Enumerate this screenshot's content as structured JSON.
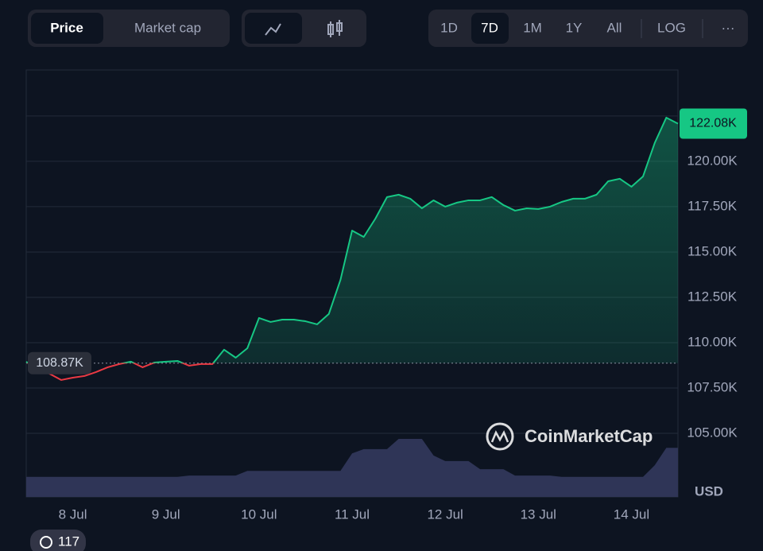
{
  "ui": {
    "tabs": [
      "Price",
      "Market cap"
    ],
    "ranges": [
      "1D",
      "7D",
      "1M",
      "1Y",
      "All"
    ],
    "log": "LOG",
    "more": "···",
    "currency": "USD",
    "watermark": "CoinMarketCap",
    "badge_count": 117
  },
  "chart_data": {
    "type": "line",
    "categories": [
      null,
      null,
      null,
      null,
      "8 Jul",
      null,
      null,
      null,
      null,
      null,
      null,
      null,
      "9 Jul",
      null,
      null,
      null,
      null,
      null,
      null,
      null,
      "10 Jul",
      null,
      null,
      null,
      null,
      null,
      null,
      null,
      "11 Jul",
      null,
      null,
      null,
      null,
      null,
      null,
      null,
      "12 Jul",
      null,
      null,
      null,
      null,
      null,
      null,
      null,
      "13 Jul",
      null,
      null,
      null,
      null,
      null,
      null,
      null,
      "14 Jul",
      null,
      null,
      null,
      null
    ],
    "values": [
      108950,
      108500,
      108290,
      107940,
      108070,
      108160,
      108380,
      108640,
      108820,
      108950,
      108640,
      108900,
      108950,
      108990,
      108730,
      108820,
      108820,
      109610,
      109170,
      109690,
      111360,
      111140,
      111270,
      111270,
      111180,
      111010,
      111580,
      113460,
      116180,
      115830,
      116840,
      118030,
      118160,
      117940,
      117410,
      117850,
      117500,
      117720,
      117850,
      117850,
      118030,
      117590,
      117280,
      117410,
      117370,
      117500,
      117760,
      117940,
      117940,
      118160,
      118900,
      119040,
      118600,
      119170,
      121010,
      122410,
      122080
    ],
    "color": "#16c784",
    "down_color": "#ea3943",
    "reference": {
      "value": 108870,
      "label": "108.87K"
    },
    "current": {
      "value": 122080,
      "label": "122.08K"
    },
    "ylim": [
      101490,
      125040
    ],
    "yticks": [
      {
        "value": 105000,
        "label": "105.00K"
      },
      {
        "value": 107500,
        "label": "107.50K"
      },
      {
        "value": 110000,
        "label": "110.00K"
      },
      {
        "value": 112500,
        "label": "112.50K"
      },
      {
        "value": 115000,
        "label": "115.00K"
      },
      {
        "value": 117500,
        "label": "117.50K"
      },
      {
        "value": 120000,
        "label": "120.00K"
      },
      {
        "value": 122500,
        "label": null
      }
    ],
    "grid": true,
    "volume": {
      "color": "#2f3557",
      "ylim": [
        0,
        100
      ],
      "values": [
        4.7,
        4.7,
        4.7,
        4.7,
        4.7,
        4.7,
        4.7,
        4.7,
        4.7,
        4.7,
        4.7,
        4.7,
        4.7,
        4.7,
        5,
        5,
        5,
        5,
        5,
        6.1,
        6.1,
        6.1,
        6.1,
        6.1,
        6.1,
        6.1,
        6.1,
        6.1,
        10.2,
        11.2,
        11.2,
        11.2,
        13.6,
        13.6,
        13.6,
        9.7,
        8.4,
        8.4,
        8.4,
        6.5,
        6.5,
        6.5,
        5,
        5,
        5,
        5,
        4.7,
        4.7,
        4.7,
        4.7,
        4.7,
        4.7,
        4.7,
        4.7,
        7.4,
        11.5,
        11.5
      ]
    }
  }
}
